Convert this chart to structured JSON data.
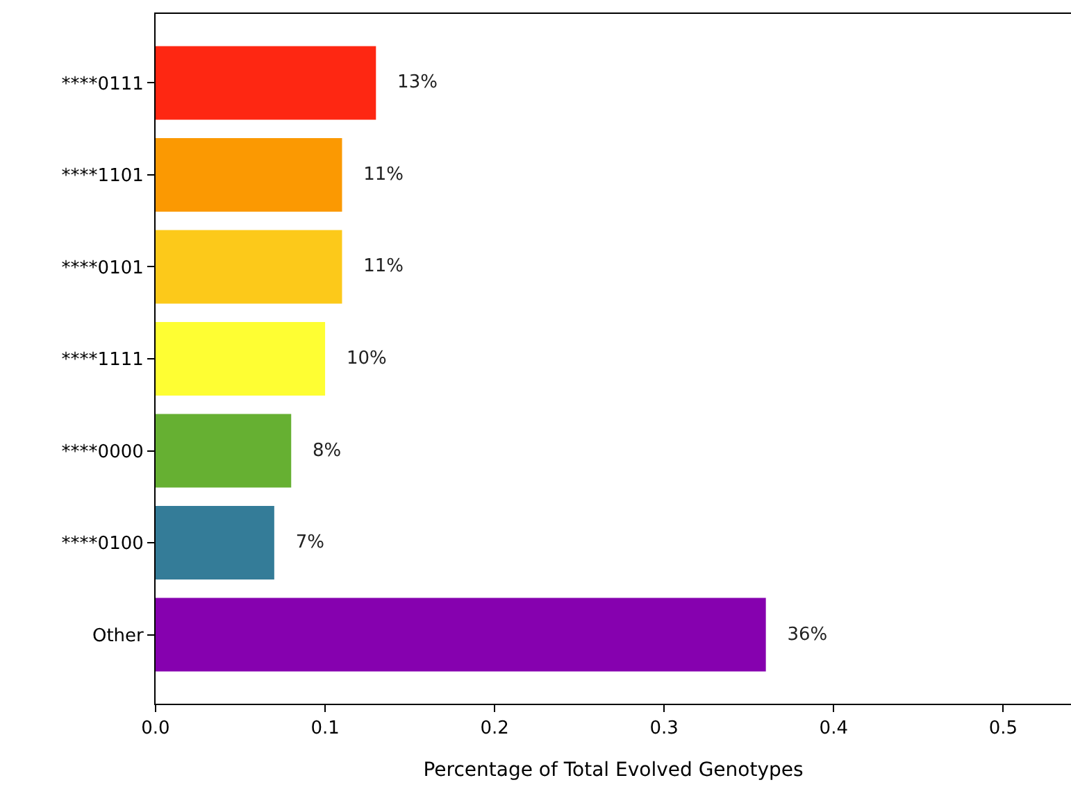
{
  "chart_data": {
    "type": "bar",
    "orientation": "horizontal",
    "xlabel": "Percentage of Total Evolved Genotypes",
    "categories": [
      "****0111",
      "****1101",
      "****0101",
      "****1111",
      "****0000",
      "****0100",
      "Other"
    ],
    "values": [
      0.13,
      0.11,
      0.11,
      0.1,
      0.08,
      0.07,
      0.36
    ],
    "value_labels": [
      "13%",
      "11%",
      "11%",
      "10%",
      "8%",
      "7%",
      "36%"
    ],
    "colors": [
      "#fe2712",
      "#fb9902",
      "#fcc91a",
      "#fefe33",
      "#66b032",
      "#347c98",
      "#8601af"
    ],
    "xlim": [
      0,
      0.54
    ],
    "xticks": [
      {
        "value": 0,
        "label": "0.0"
      },
      {
        "value": 0.1,
        "label": "0.1"
      },
      {
        "value": 0.2,
        "label": "0.2"
      },
      {
        "value": 0.3,
        "label": "0.3"
      },
      {
        "value": 0.4,
        "label": "0.4"
      },
      {
        "value": 0.5,
        "label": "0.5"
      }
    ],
    "grid": false
  }
}
